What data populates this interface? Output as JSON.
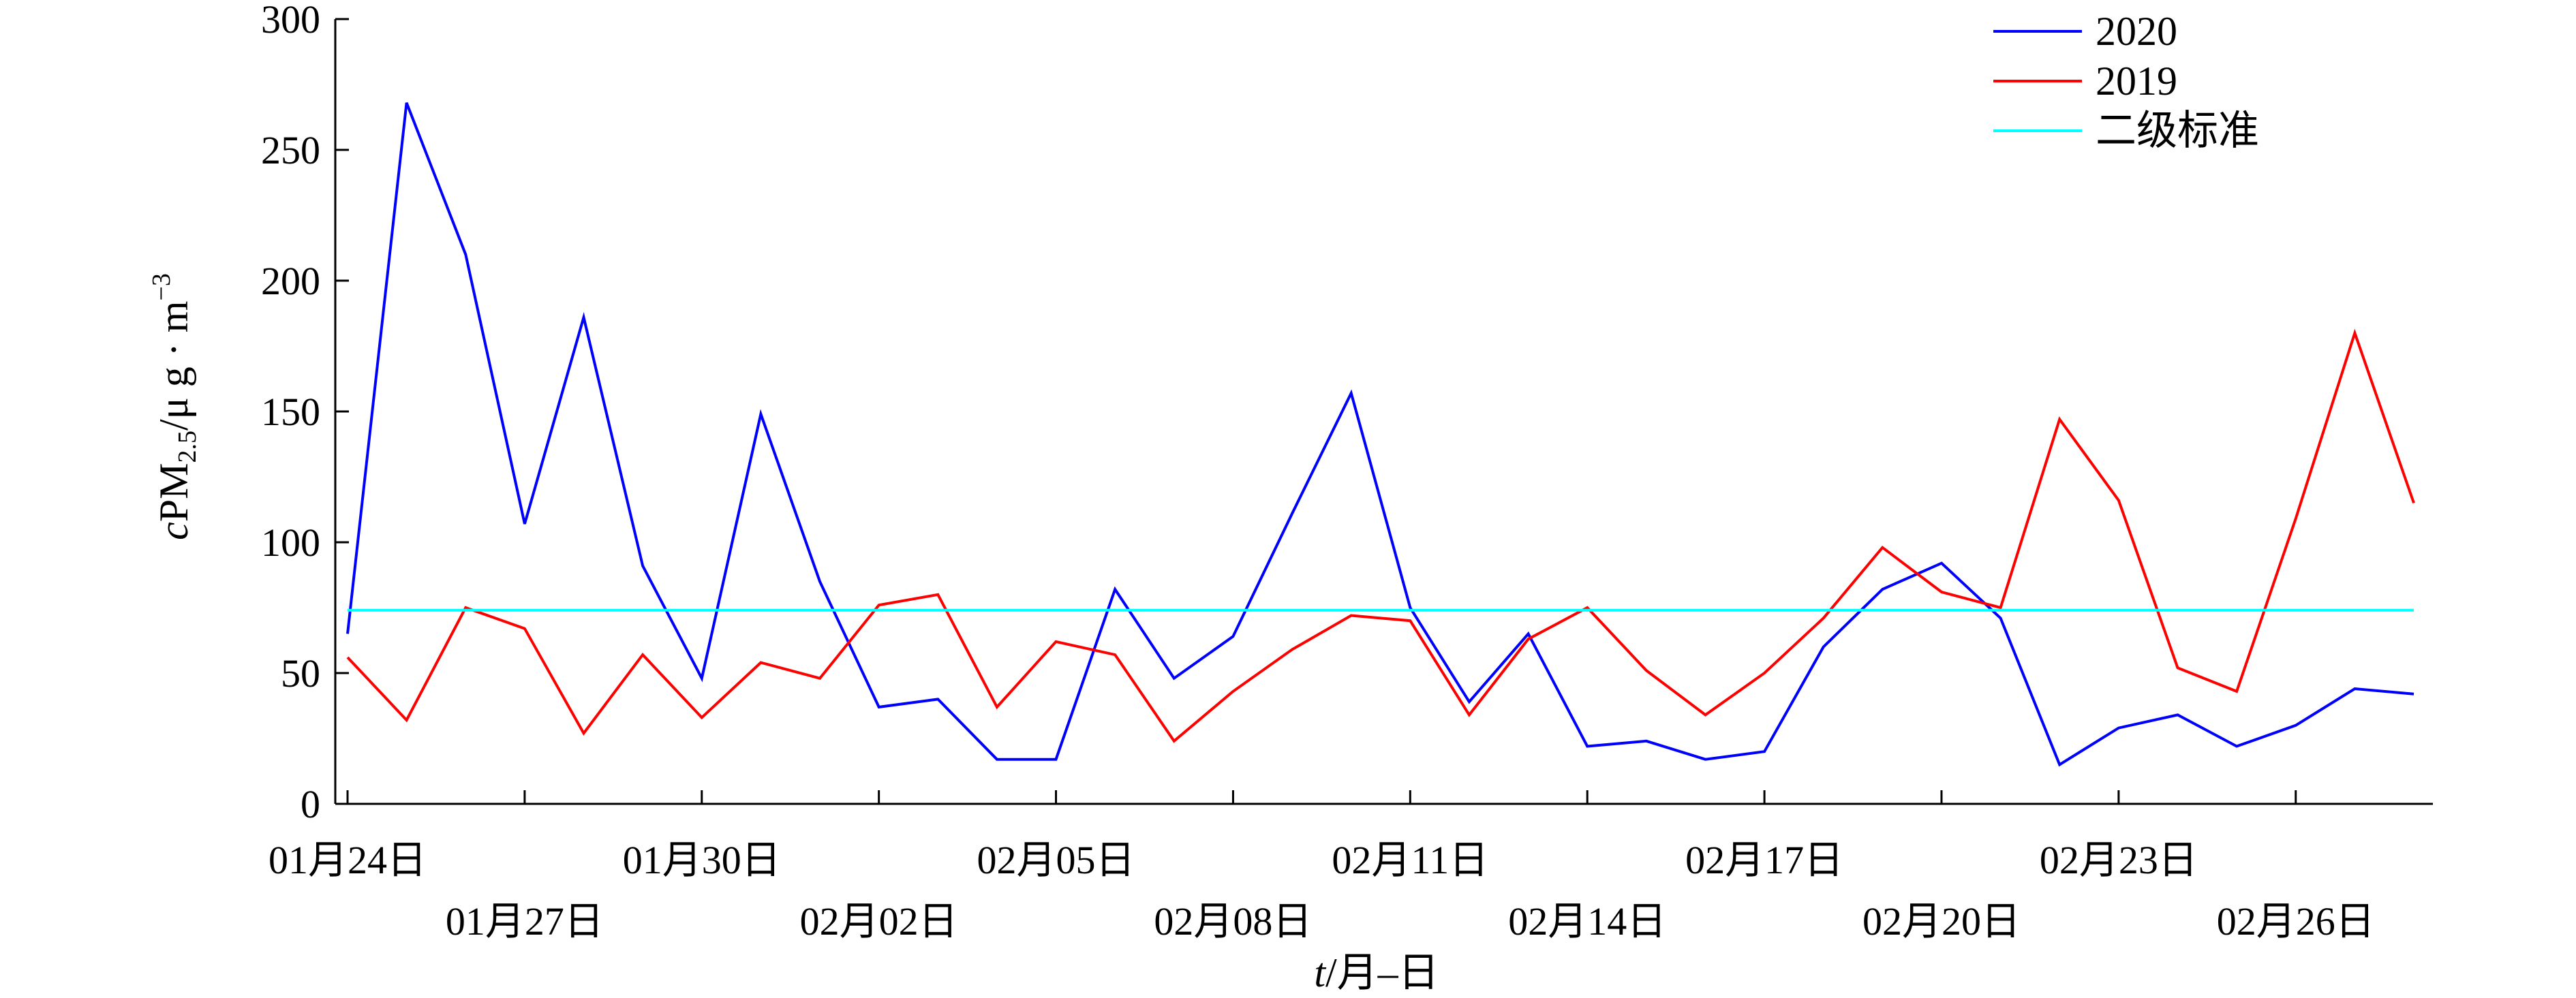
{
  "chart_data": {
    "type": "line",
    "xlabel": {
      "var": "t",
      "rest": "/月–日"
    },
    "ylabel": {
      "prefix": "c",
      "main": "PM",
      "sub": "2.5",
      "unit": "/μ g · m",
      "sup": "−3"
    },
    "ylim": [
      0,
      300
    ],
    "y_ticks": [
      0,
      50,
      100,
      150,
      200,
      250,
      300
    ],
    "xlim": [
      0,
      36
    ],
    "x_ticks": [
      {
        "i": 0,
        "label": "01月24日",
        "row": 0
      },
      {
        "i": 3,
        "label": "01月27日",
        "row": 1
      },
      {
        "i": 6,
        "label": "01月30日",
        "row": 0
      },
      {
        "i": 9,
        "label": "02月02日",
        "row": 1
      },
      {
        "i": 12,
        "label": "02月05日",
        "row": 0
      },
      {
        "i": 15,
        "label": "02月08日",
        "row": 1
      },
      {
        "i": 18,
        "label": "02月11日",
        "row": 0
      },
      {
        "i": 21,
        "label": "02月14日",
        "row": 1
      },
      {
        "i": 24,
        "label": "02月17日",
        "row": 0
      },
      {
        "i": 27,
        "label": "02月20日",
        "row": 1
      },
      {
        "i": 30,
        "label": "02月23日",
        "row": 0
      },
      {
        "i": 33,
        "label": "02月26日",
        "row": 1
      }
    ],
    "legend_position": "top-right",
    "grid": false,
    "series": [
      {
        "name": "2020",
        "color": "#0000ff",
        "values": [
          65,
          268,
          210,
          107,
          186,
          91,
          48,
          149,
          85,
          37,
          40,
          17,
          17,
          82,
          48,
          64,
          111,
          157,
          75,
          39,
          65,
          22,
          24,
          17,
          20,
          60,
          82,
          92,
          71,
          15,
          29,
          34,
          22,
          30,
          44,
          42
        ]
      },
      {
        "name": "2019",
        "color": "#ff0000",
        "values": [
          56,
          32,
          75,
          67,
          27,
          57,
          33,
          54,
          48,
          76,
          80,
          37,
          62,
          57,
          24,
          43,
          59,
          72,
          70,
          34,
          63,
          75,
          51,
          34,
          50,
          71,
          98,
          81,
          75,
          147,
          116,
          52,
          43,
          109,
          180,
          115
        ]
      },
      {
        "name": "二级标准",
        "color": "#00ffff",
        "constant": 74
      }
    ]
  }
}
